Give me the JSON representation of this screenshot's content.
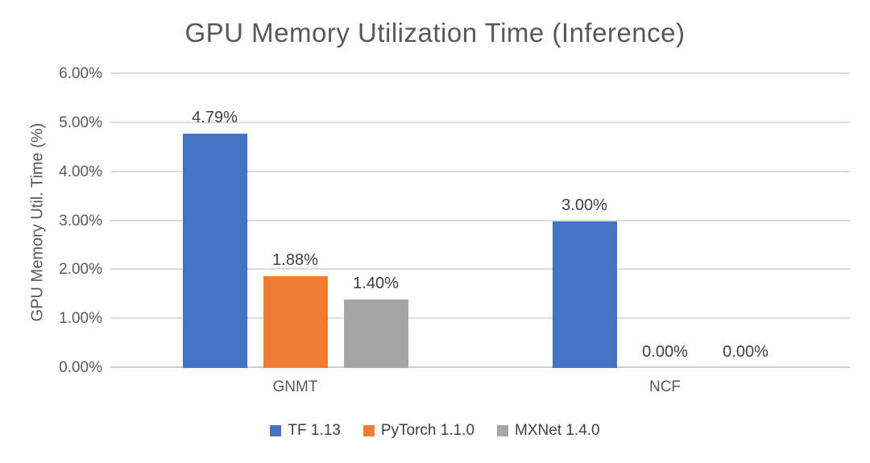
{
  "chart_data": {
    "type": "bar",
    "title": "GPU Memory Utilization Time (Inference)",
    "ylabel": "GPU Memory Util. Time (%)",
    "xlabel": "",
    "categories": [
      "GNMT",
      "NCF"
    ],
    "series": [
      {
        "name": "TF 1.13",
        "color": "#4472C4",
        "values": [
          4.79,
          3.0
        ],
        "labels": [
          "4.79%",
          "3.00%"
        ]
      },
      {
        "name": "PyTorch 1.1.0",
        "color": "#ED7D31",
        "values": [
          1.88,
          0.0
        ],
        "labels": [
          "1.88%",
          "0.00%"
        ]
      },
      {
        "name": "MXNet 1.4.0",
        "color": "#A5A5A5",
        "values": [
          1.4,
          0.0
        ],
        "labels": [
          "1.40%",
          "0.00%"
        ]
      }
    ],
    "ylim": [
      0,
      6
    ],
    "y_ticks": [
      "0.00%",
      "1.00%",
      "2.00%",
      "3.00%",
      "4.00%",
      "5.00%",
      "6.00%"
    ],
    "grid": true,
    "legend_position": "bottom"
  }
}
